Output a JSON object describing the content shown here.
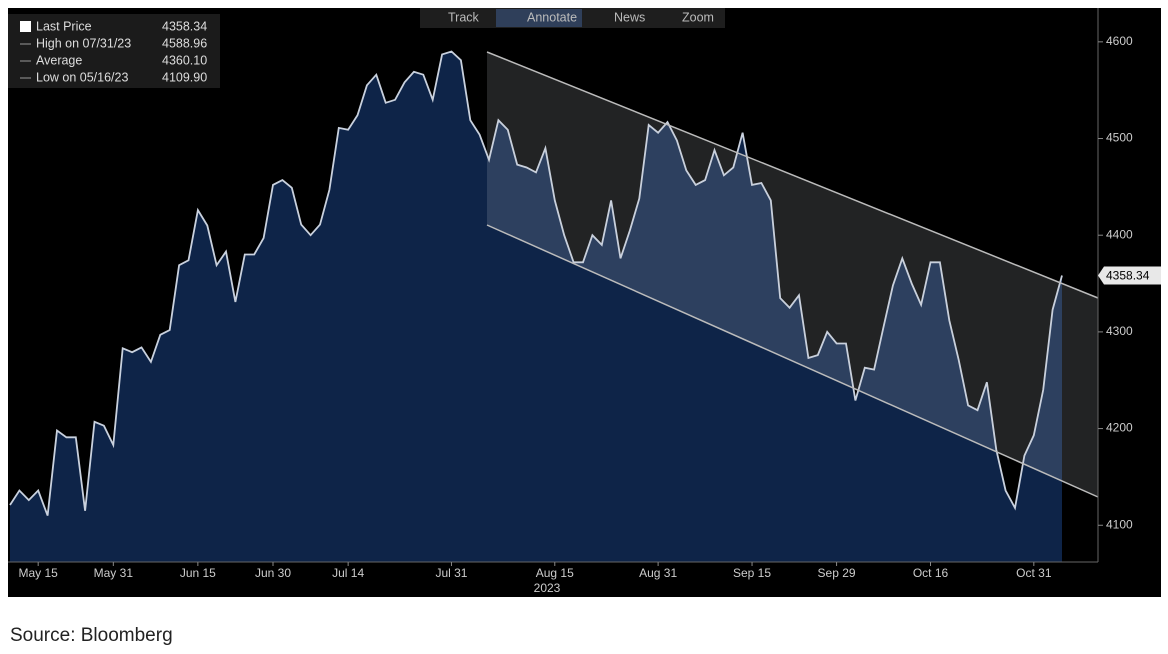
{
  "chart_data": {
    "type": "area",
    "series": [
      {
        "name": "Last Price",
        "color": "#c9d1de",
        "fill": "#0e2448",
        "values": [
          4121,
          4136,
          4126,
          4136,
          4110,
          4198,
          4191,
          4191,
          4115,
          4207,
          4203,
          4183,
          4283,
          4279,
          4284,
          4269,
          4297,
          4302,
          4369,
          4374,
          4426,
          4410,
          4369,
          4383,
          4331,
          4380,
          4380,
          4397,
          4452,
          4457,
          4449,
          4411,
          4400,
          4411,
          4447,
          4511,
          4509,
          4524,
          4555,
          4566,
          4537,
          4540,
          4558,
          4569,
          4566,
          4540,
          4587,
          4590,
          4581,
          4519,
          4504,
          4478,
          4519,
          4509,
          4473,
          4470,
          4465,
          4490,
          4436,
          4400,
          4372,
          4372,
          4400,
          4390,
          4436,
          4376,
          4405,
          4438,
          4514,
          4506,
          4517,
          4498,
          4467,
          4452,
          4457,
          4488,
          4462,
          4470,
          4506,
          4452,
          4454,
          4436,
          4335,
          4325,
          4338,
          4273,
          4276,
          4300,
          4288,
          4288,
          4229,
          4263,
          4261,
          4305,
          4348,
          4376,
          4350,
          4328,
          4372,
          4372,
          4312,
          4271,
          4224,
          4219,
          4248,
          4178,
          4136,
          4118,
          4172,
          4193,
          4240,
          4323,
          4358.34
        ]
      }
    ],
    "categories": [
      null,
      null,
      null,
      "May 15",
      null,
      null,
      null,
      null,
      null,
      null,
      null,
      "May 31",
      null,
      null,
      null,
      null,
      null,
      null,
      null,
      null,
      "Jun 15",
      null,
      null,
      null,
      null,
      null,
      null,
      null,
      "Jun 30",
      null,
      null,
      null,
      null,
      null,
      null,
      null,
      "Jul 14",
      null,
      null,
      null,
      null,
      null,
      null,
      null,
      null,
      null,
      null,
      "Jul 31",
      null,
      null,
      null,
      null,
      null,
      null,
      null,
      null,
      null,
      null,
      "Aug 15",
      null,
      null,
      null,
      null,
      null,
      null,
      null,
      null,
      null,
      null,
      "Aug 31",
      null,
      null,
      null,
      null,
      null,
      null,
      null,
      null,
      null,
      "Sep 15",
      null,
      null,
      null,
      null,
      null,
      null,
      null,
      null,
      "Sep 29",
      null,
      null,
      null,
      null,
      null,
      null,
      null,
      null,
      null,
      "Oct 16",
      null,
      null,
      null,
      null,
      null,
      null,
      null,
      null,
      null,
      null,
      "Oct 31",
      null,
      null,
      null
    ],
    "xlabel": "2023",
    "ylim": [
      4062,
      4635
    ],
    "yticks": [
      4100,
      4200,
      4300,
      4400,
      4500,
      4600
    ],
    "y_axis_side": "right",
    "last_price_tag": "4358.34",
    "legend": [
      {
        "label": "Last Price",
        "value": "4358.34"
      },
      {
        "label": "High on 07/31/23",
        "value": "4588.96"
      },
      {
        "label": "Average",
        "value": "4360.10"
      },
      {
        "label": "Low on 05/16/23",
        "value": "4109.90"
      }
    ],
    "toolbar": [
      "Track",
      "Annotate",
      "News",
      "Zoom"
    ]
  },
  "source": "Source: Bloomberg"
}
